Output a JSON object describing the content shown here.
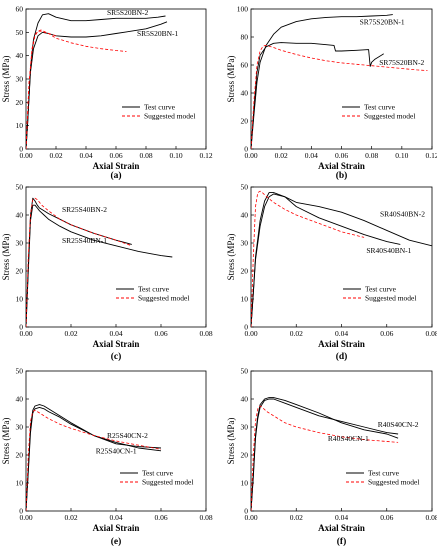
{
  "chart_data": [
    {
      "type": "line",
      "panel_label": "(a)",
      "xlabel": "Axial Strain",
      "ylabel": "Stress (MPa)",
      "xlim": [
        0,
        0.12
      ],
      "ylim": [
        0,
        60
      ],
      "xticks": [
        "0.00",
        "0.02",
        "0.04",
        "0.06",
        "0.08",
        "0.10",
        "0.12"
      ],
      "yticks": [
        "0",
        "10",
        "20",
        "30",
        "40",
        "50",
        "60"
      ],
      "legend": [
        {
          "label": "Test curve",
          "color": "#000000",
          "dash": "solid"
        },
        {
          "label": "Suggested model",
          "color": "#ff0000",
          "dash": "dash"
        }
      ],
      "annotations": [
        {
          "text": "SR5S20BN-2",
          "x": 0.054,
          "y": 57.5
        },
        {
          "text": "SR5S20BN-1",
          "x": 0.074,
          "y": 48.5
        }
      ],
      "series": [
        {
          "kind": "test",
          "x": [
            0,
            0.001,
            0.002,
            0.003,
            0.005,
            0.008,
            0.011,
            0.015,
            0.02,
            0.03,
            0.04,
            0.05,
            0.06,
            0.07,
            0.08,
            0.088,
            0.093
          ],
          "y": [
            0,
            10,
            22,
            35,
            47,
            54,
            57.5,
            58,
            56.5,
            55,
            55,
            55.5,
            56,
            56,
            56,
            56.5,
            57
          ]
        },
        {
          "kind": "test",
          "x": [
            0,
            0.001,
            0.002,
            0.003,
            0.005,
            0.008,
            0.011,
            0.015,
            0.02,
            0.03,
            0.04,
            0.05,
            0.06,
            0.07,
            0.08,
            0.09,
            0.094
          ],
          "y": [
            0,
            10,
            22,
            33,
            43,
            48.5,
            50,
            49.5,
            48.5,
            48,
            48,
            48.5,
            49.5,
            50.5,
            51.5,
            53.5,
            54.5
          ]
        },
        {
          "kind": "model",
          "x": [
            0,
            0.001,
            0.002,
            0.004,
            0.006,
            0.008,
            0.01,
            0.015,
            0.02,
            0.03,
            0.04,
            0.05,
            0.06,
            0.067
          ],
          "y": [
            0,
            14,
            28,
            42,
            48.5,
            50.5,
            51,
            49.5,
            47.5,
            45.5,
            44,
            43,
            42.2,
            41.8
          ]
        },
        {
          "kind": "model",
          "x": [
            0,
            0.001,
            0.002,
            0.004,
            0.006,
            0.008,
            0.01,
            0.015,
            0.02
          ],
          "y": [
            0,
            14,
            28,
            43,
            49,
            50.5,
            50.5,
            49.5,
            48.5
          ]
        }
      ]
    },
    {
      "type": "line",
      "panel_label": "(b)",
      "xlabel": "Axial Strain",
      "ylabel": "Stress (MPa)",
      "xlim": [
        0,
        0.12
      ],
      "ylim": [
        0,
        100
      ],
      "xticks": [
        "0.00",
        "0.02",
        "0.04",
        "0.06",
        "0.08",
        "0.10",
        "0.12"
      ],
      "yticks": [
        "0",
        "20",
        "40",
        "60",
        "80",
        "100"
      ],
      "legend": [
        {
          "label": "Test curve",
          "color": "#000000",
          "dash": "solid"
        },
        {
          "label": "Suggested model",
          "color": "#ff0000",
          "dash": "dash"
        }
      ],
      "annotations": [
        {
          "text": "SR75S20BN-1",
          "x": 0.072,
          "y": 89
        },
        {
          "text": "SR75S20BN-2",
          "x": 0.085,
          "y": 60
        }
      ],
      "series": [
        {
          "kind": "test",
          "x": [
            0,
            0.002,
            0.004,
            0.006,
            0.01,
            0.015,
            0.02,
            0.03,
            0.04,
            0.05,
            0.06,
            0.07,
            0.08,
            0.09,
            0.094
          ],
          "y": [
            0,
            25,
            48,
            62,
            74,
            82,
            87,
            91,
            93,
            94,
            94.5,
            94.5,
            95,
            95.5,
            96
          ]
        },
        {
          "kind": "test",
          "x": [
            0,
            0.002,
            0.004,
            0.006,
            0.01,
            0.015,
            0.02,
            0.03,
            0.04,
            0.05,
            0.055,
            0.056,
            0.06,
            0.07,
            0.078,
            0.079,
            0.08,
            0.082,
            0.088
          ],
          "y": [
            0,
            30,
            55,
            67,
            73,
            75.5,
            76,
            75.5,
            75.5,
            74.5,
            74,
            70,
            70,
            70.5,
            71,
            59,
            62,
            64,
            68
          ]
        },
        {
          "kind": "model",
          "x": [
            0,
            0.002,
            0.004,
            0.006,
            0.008,
            0.01,
            0.015,
            0.02,
            0.03,
            0.04,
            0.05,
            0.06,
            0.07,
            0.08,
            0.09,
            0.1,
            0.11,
            0.117
          ],
          "y": [
            0,
            35,
            60,
            70,
            73.5,
            74,
            72.5,
            70.5,
            67.5,
            65,
            63,
            61.5,
            60.5,
            59.5,
            58.5,
            57.5,
            56.5,
            56
          ]
        }
      ]
    },
    {
      "type": "line",
      "panel_label": "(c)",
      "xlabel": "Axial Strain",
      "ylabel": "Stress (MPa)",
      "xlim": [
        0,
        0.08
      ],
      "ylim": [
        0,
        50
      ],
      "xticks": [
        "0.00",
        "0.02",
        "0.04",
        "0.06",
        "0.08"
      ],
      "yticks": [
        "0",
        "10",
        "20",
        "30",
        "40",
        "50"
      ],
      "legend": [
        {
          "label": "Test curve",
          "color": "#000000",
          "dash": "solid"
        },
        {
          "label": "Suggested model",
          "color": "#ff0000",
          "dash": "dash"
        }
      ],
      "annotations": [
        {
          "text": "SR25S40BN-2",
          "x": 0.016,
          "y": 41
        },
        {
          "text": "SR25S40BN-1",
          "x": 0.016,
          "y": 30
        }
      ],
      "series": [
        {
          "kind": "test",
          "x": [
            0,
            0.001,
            0.002,
            0.003,
            0.004,
            0.005,
            0.006,
            0.008,
            0.01,
            0.015,
            0.02,
            0.03,
            0.04,
            0.05,
            0.06,
            0.065
          ],
          "y": [
            0,
            20,
            38,
            43.5,
            43.5,
            42.5,
            41.5,
            40,
            38.5,
            36,
            34,
            31,
            29,
            27,
            25.5,
            25
          ]
        },
        {
          "kind": "test",
          "x": [
            0,
            0.001,
            0.002,
            0.003,
            0.004,
            0.005,
            0.006,
            0.008,
            0.01,
            0.015,
            0.02,
            0.03,
            0.04,
            0.047
          ],
          "y": [
            0,
            22,
            40,
            46,
            45,
            43.5,
            42.5,
            41.5,
            40.5,
            38.5,
            36.5,
            33.5,
            31,
            29.5
          ]
        },
        {
          "kind": "model",
          "x": [
            0,
            0.001,
            0.002,
            0.003,
            0.004,
            0.005,
            0.007,
            0.01,
            0.015,
            0.02,
            0.03,
            0.04,
            0.047
          ],
          "y": [
            0,
            25,
            40,
            45.5,
            46,
            45.5,
            43.5,
            41.5,
            38.5,
            36.5,
            33.5,
            31,
            29
          ]
        }
      ]
    },
    {
      "type": "line",
      "panel_label": "(d)",
      "xlabel": "Axial Strain",
      "ylabel": "Stress (MPa)",
      "xlim": [
        0,
        0.08
      ],
      "ylim": [
        0,
        50
      ],
      "xticks": [
        "0.00",
        "0.02",
        "0.04",
        "0.06",
        "0.08"
      ],
      "yticks": [
        "0",
        "10",
        "20",
        "30",
        "40",
        "50"
      ],
      "legend": [
        {
          "label": "Test curve",
          "color": "#000000",
          "dash": "solid"
        },
        {
          "label": "Suggested model",
          "color": "#ff0000",
          "dash": "dash"
        }
      ],
      "annotations": [
        {
          "text": "SR40S40BN-2",
          "x": 0.057,
          "y": 39.5
        },
        {
          "text": "SR40S40BN-1",
          "x": 0.051,
          "y": 26.5
        }
      ],
      "series": [
        {
          "kind": "test",
          "x": [
            0,
            0.001,
            0.002,
            0.004,
            0.006,
            0.008,
            0.01,
            0.015,
            0.02,
            0.03,
            0.04,
            0.05,
            0.06,
            0.07,
            0.08
          ],
          "y": [
            0,
            12,
            24,
            36,
            43,
            46.5,
            47.5,
            46.5,
            44.5,
            43,
            41,
            38,
            34.5,
            31,
            29
          ]
        },
        {
          "kind": "test",
          "x": [
            0,
            0.001,
            0.002,
            0.004,
            0.006,
            0.008,
            0.01,
            0.015,
            0.02,
            0.03,
            0.04,
            0.05,
            0.06,
            0.066
          ],
          "y": [
            0,
            12,
            25,
            38,
            45,
            48,
            48,
            46.5,
            43,
            39,
            36,
            33,
            30.5,
            29.5
          ]
        },
        {
          "kind": "model",
          "x": [
            0,
            0.001,
            0.002,
            0.003,
            0.004,
            0.005,
            0.007,
            0.01,
            0.015,
            0.02,
            0.03,
            0.04,
            0.05
          ],
          "y": [
            0,
            25,
            43,
            48,
            48.5,
            48,
            46.5,
            44.5,
            42,
            40,
            37,
            34,
            32
          ]
        }
      ]
    },
    {
      "type": "line",
      "panel_label": "(e)",
      "xlabel": "Axial Strain",
      "ylabel": "Stress (MPa)",
      "xlim": [
        0,
        0.08
      ],
      "ylim": [
        0,
        50
      ],
      "xticks": [
        "0.00",
        "0.02",
        "0.04",
        "0.06",
        "0.08"
      ],
      "yticks": [
        "0",
        "10",
        "20",
        "30",
        "40",
        "50"
      ],
      "legend": [
        {
          "label": "Test curve",
          "color": "#000000",
          "dash": "solid"
        },
        {
          "label": "Suggested model",
          "color": "#ff0000",
          "dash": "dash"
        }
      ],
      "annotations": [
        {
          "text": "R25S40CN-2",
          "x": 0.036,
          "y": 26
        },
        {
          "text": "R25S40CN-1",
          "x": 0.031,
          "y": 20.5
        }
      ],
      "series": [
        {
          "kind": "test",
          "x": [
            0,
            0.001,
            0.002,
            0.003,
            0.004,
            0.006,
            0.008,
            0.01,
            0.015,
            0.02,
            0.03,
            0.04,
            0.05,
            0.06
          ],
          "y": [
            0,
            15,
            30,
            36,
            37.5,
            38,
            37.5,
            36.5,
            34,
            31.5,
            27,
            24.5,
            22.5,
            21.5
          ]
        },
        {
          "kind": "test",
          "x": [
            0,
            0.001,
            0.002,
            0.003,
            0.004,
            0.006,
            0.008,
            0.01,
            0.015,
            0.02,
            0.03,
            0.04,
            0.05,
            0.06
          ],
          "y": [
            0,
            14,
            28,
            35,
            36.5,
            37,
            36.5,
            35.5,
            33.5,
            31,
            27,
            24,
            23,
            22.5
          ]
        },
        {
          "kind": "model",
          "x": [
            0,
            0.001,
            0.002,
            0.003,
            0.004,
            0.005,
            0.007,
            0.01,
            0.015,
            0.02,
            0.03,
            0.04,
            0.05,
            0.06
          ],
          "y": [
            0,
            20,
            32,
            35.5,
            36,
            35.5,
            34.5,
            33,
            31,
            29.5,
            27,
            25,
            23.5,
            22
          ]
        }
      ]
    },
    {
      "type": "line",
      "panel_label": "(f)",
      "xlabel": "Axial Strain",
      "ylabel": "Stress (MPa)",
      "xlim": [
        0,
        0.08
      ],
      "ylim": [
        0,
        50
      ],
      "xticks": [
        "0.00",
        "0.02",
        "0.04",
        "0.06",
        "0.08"
      ],
      "yticks": [
        "0",
        "10",
        "20",
        "30",
        "40",
        "50"
      ],
      "legend": [
        {
          "label": "Test curve",
          "color": "#000000",
          "dash": "solid"
        },
        {
          "label": "Suggested model",
          "color": "#ff0000",
          "dash": "dash"
        }
      ],
      "annotations": [
        {
          "text": "R40S40CN-2",
          "x": 0.056,
          "y": 30
        },
        {
          "text": "R40S40CN-1",
          "x": 0.034,
          "y": 25
        }
      ],
      "series": [
        {
          "kind": "test",
          "x": [
            0,
            0.001,
            0.002,
            0.003,
            0.004,
            0.006,
            0.008,
            0.01,
            0.015,
            0.02,
            0.03,
            0.04,
            0.05,
            0.06,
            0.065
          ],
          "y": [
            0,
            12,
            26,
            33,
            37,
            39.5,
            40,
            40,
            38.5,
            37,
            34,
            32,
            30,
            28,
            27.5
          ]
        },
        {
          "kind": "test",
          "x": [
            0,
            0.001,
            0.002,
            0.003,
            0.004,
            0.006,
            0.008,
            0.01,
            0.015,
            0.02,
            0.03,
            0.04,
            0.05,
            0.06,
            0.065
          ],
          "y": [
            0,
            13,
            27,
            34,
            38,
            40,
            40.5,
            40.5,
            39.5,
            38,
            35,
            31.5,
            29,
            27.5,
            26
          ]
        },
        {
          "kind": "model",
          "x": [
            0,
            0.001,
            0.002,
            0.003,
            0.004,
            0.005,
            0.007,
            0.01,
            0.015,
            0.02,
            0.03,
            0.04,
            0.05,
            0.065
          ],
          "y": [
            0,
            20,
            32,
            36.5,
            37.5,
            37,
            35.5,
            34,
            31.5,
            30,
            28,
            26.5,
            25.5,
            24.5
          ]
        }
      ]
    }
  ]
}
